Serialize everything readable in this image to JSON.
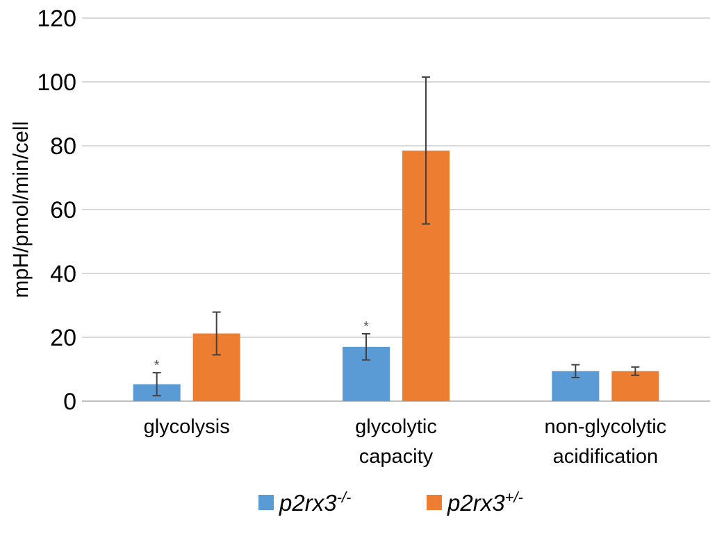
{
  "chart_data": {
    "type": "bar",
    "title": "",
    "ylabel": "mpH/pmol/min/cell",
    "ylim": [
      0,
      120
    ],
    "yticks": [
      "0",
      "20",
      "40",
      "60",
      "80",
      "100",
      "120"
    ],
    "grid": true,
    "legend_position": "bottom",
    "categories": [
      [
        "glycolysis"
      ],
      [
        "glycolytic",
        "capacity"
      ],
      [
        "non-glycolytic",
        "acidification"
      ]
    ],
    "series": [
      {
        "name_base": "p2rx3",
        "name_sup": "-/-",
        "color": "#5B9BD5",
        "values": [
          5.3,
          17.0,
          9.4
        ],
        "error": [
          3.6,
          4.1,
          2.0
        ],
        "significance": [
          "*",
          "*",
          ""
        ]
      },
      {
        "name_base": "p2rx3",
        "name_sup": "+/-",
        "color": "#ED7D31",
        "values": [
          21.2,
          78.5,
          9.4
        ],
        "error": [
          6.7,
          23.0,
          1.3
        ],
        "significance": [
          "",
          "",
          ""
        ]
      }
    ]
  }
}
